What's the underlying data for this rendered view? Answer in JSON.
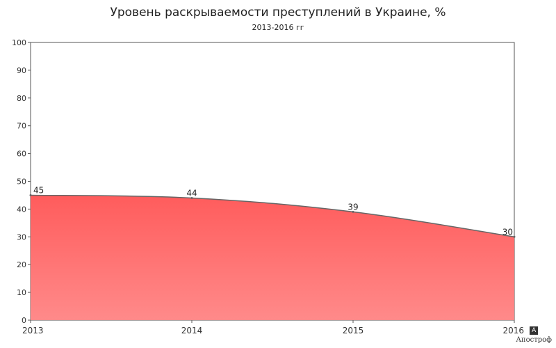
{
  "chart_data": {
    "type": "area",
    "title": "Уровень раскрываемости преступлений в Украине, %",
    "subtitle": "2013-2016 гг",
    "x": [
      "2013",
      "2014",
      "2015",
      "2016"
    ],
    "series": [
      {
        "values": [
          45,
          44,
          39,
          30
        ],
        "data_labels": [
          "45",
          "44",
          "39",
          "30"
        ]
      }
    ],
    "ylim": [
      0,
      100
    ],
    "yticks": [
      "0",
      "10",
      "20",
      "30",
      "40",
      "50",
      "60",
      "70",
      "80",
      "90",
      "100"
    ],
    "grid": false,
    "colors": {
      "fill_top": "#ff5c5c",
      "fill_bottom": "#ff8a8a",
      "line": "#666666",
      "axis": "#555555"
    }
  },
  "brand": {
    "mark": "A",
    "name": "Апостроф"
  }
}
